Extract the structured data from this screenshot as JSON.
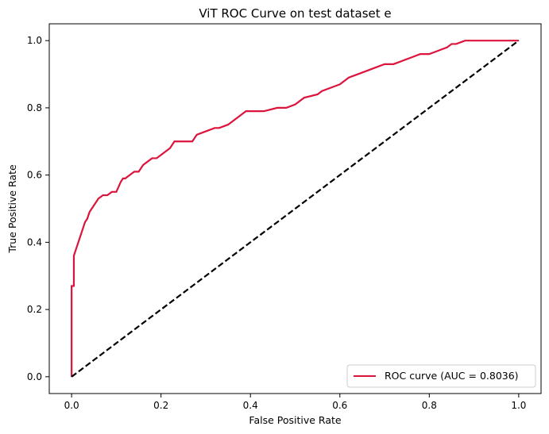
{
  "chart_data": {
    "type": "line",
    "title": "ViT ROC Curve on test dataset e",
    "xlabel": "False Positive Rate",
    "ylabel": "True Positive Rate",
    "xlim": [
      -0.05,
      1.05
    ],
    "ylim": [
      -0.05,
      1.05
    ],
    "xticks": [
      0.0,
      0.2,
      0.4,
      0.6,
      0.8,
      1.0
    ],
    "xtick_labels": [
      "0.0",
      "0.2",
      "0.4",
      "0.6",
      "0.8",
      "1.0"
    ],
    "yticks": [
      0.0,
      0.2,
      0.4,
      0.6,
      0.8,
      1.0
    ],
    "ytick_labels": [
      "0.0",
      "0.2",
      "0.4",
      "0.6",
      "0.8",
      "1.0"
    ],
    "grid": false,
    "legend_position": "lower right",
    "series": [
      {
        "name": "ROC curve (AUC = 0.8036)",
        "color": "#dc143c",
        "style": "solid",
        "x": [
          0.0,
          0.0,
          0.005,
          0.005,
          0.01,
          0.015,
          0.02,
          0.025,
          0.03,
          0.035,
          0.04,
          0.045,
          0.05,
          0.055,
          0.06,
          0.07,
          0.08,
          0.09,
          0.1,
          0.11,
          0.115,
          0.12,
          0.13,
          0.14,
          0.15,
          0.16,
          0.17,
          0.18,
          0.19,
          0.2,
          0.21,
          0.22,
          0.23,
          0.25,
          0.27,
          0.28,
          0.3,
          0.32,
          0.33,
          0.35,
          0.36,
          0.37,
          0.38,
          0.39,
          0.4,
          0.43,
          0.46,
          0.48,
          0.5,
          0.51,
          0.52,
          0.55,
          0.56,
          0.58,
          0.6,
          0.61,
          0.62,
          0.64,
          0.66,
          0.68,
          0.7,
          0.72,
          0.74,
          0.76,
          0.78,
          0.8,
          0.82,
          0.84,
          0.85,
          0.86,
          0.88,
          0.9,
          1.0
        ],
        "y": [
          0.0,
          0.27,
          0.27,
          0.36,
          0.38,
          0.4,
          0.42,
          0.44,
          0.46,
          0.47,
          0.49,
          0.5,
          0.51,
          0.52,
          0.53,
          0.54,
          0.54,
          0.55,
          0.55,
          0.58,
          0.59,
          0.59,
          0.6,
          0.61,
          0.61,
          0.63,
          0.64,
          0.65,
          0.65,
          0.66,
          0.67,
          0.68,
          0.7,
          0.7,
          0.7,
          0.72,
          0.73,
          0.74,
          0.74,
          0.75,
          0.76,
          0.77,
          0.78,
          0.79,
          0.79,
          0.79,
          0.8,
          0.8,
          0.81,
          0.82,
          0.83,
          0.84,
          0.85,
          0.86,
          0.87,
          0.88,
          0.89,
          0.9,
          0.91,
          0.92,
          0.93,
          0.93,
          0.94,
          0.95,
          0.96,
          0.96,
          0.97,
          0.98,
          0.99,
          0.99,
          1.0,
          1.0,
          1.0
        ]
      },
      {
        "name": "",
        "color": "#000000",
        "style": "dashed",
        "x": [
          0.0,
          1.0
        ],
        "y": [
          0.0,
          1.0
        ]
      }
    ]
  }
}
